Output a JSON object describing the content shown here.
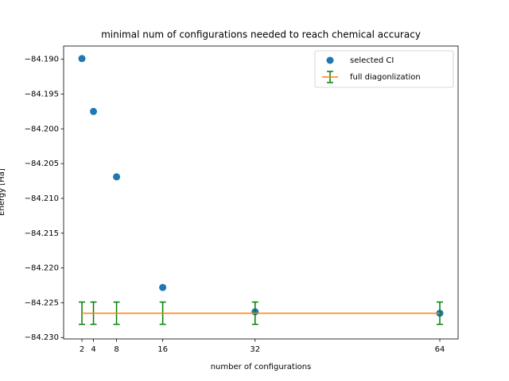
{
  "chart_data": {
    "type": "scatter",
    "title": "minimal num of configurations needed to reach chemical accuracy",
    "x_label": "number of configurations",
    "y_label": "Energy [Ha]",
    "xlim": [
      -1.17,
      67.17
    ],
    "ylim": [
      -84.2302,
      -84.1881
    ],
    "xticks": [
      2,
      4,
      8,
      16,
      32,
      64
    ],
    "yticks": [
      {
        "value": -84.19,
        "label": "−84.190"
      },
      {
        "value": -84.195,
        "label": "−84.195"
      },
      {
        "value": -84.2,
        "label": "−84.200"
      },
      {
        "value": -84.205,
        "label": "−84.205"
      },
      {
        "value": -84.21,
        "label": "−84.210"
      },
      {
        "value": -84.215,
        "label": "−84.215"
      },
      {
        "value": -84.22,
        "label": "−84.220"
      },
      {
        "value": -84.225,
        "label": "−84.225"
      },
      {
        "value": -84.23,
        "label": "−84.230"
      }
    ],
    "legend": "upper right",
    "series": [
      {
        "name": "selected CI",
        "type": "scatter",
        "color": "#1f77b4",
        "x": [
          2,
          4,
          8,
          16,
          32,
          64
        ],
        "values": [
          -84.1899,
          -84.1975,
          -84.2069,
          -84.2228,
          -84.2263,
          -84.2265
        ]
      },
      {
        "name": "full diagonlization",
        "type": "errorbar",
        "color": "#ff7f0e",
        "error_color": "green",
        "x": [
          2,
          4,
          8,
          16,
          32,
          64
        ],
        "values": [
          -84.2265,
          -84.2265,
          -84.2265,
          -84.2265,
          -84.2265,
          -84.2265
        ],
        "errors": [
          0.0016,
          0.0016,
          0.0016,
          0.0016,
          0.0016,
          0.0016
        ]
      }
    ]
  }
}
